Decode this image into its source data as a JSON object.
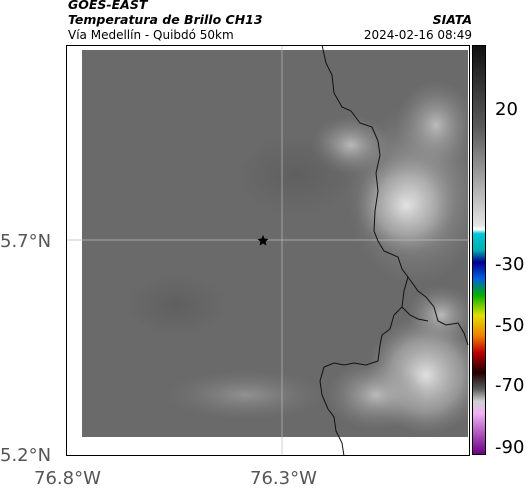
{
  "header": {
    "satellite": "GOES-EAST",
    "product": "Temperatura de Brillo CH13",
    "region": "Vía Medellín - Quibdó 50km",
    "agency": "SIATA",
    "datetime": "2024-02-16 08:49"
  },
  "axes": {
    "lat_labels": [
      "5.7°N",
      "5.2°N"
    ],
    "lon_labels": [
      "76.8°W",
      "76.3°W"
    ]
  },
  "colorbar": {
    "tick_labels": [
      "20",
      "-30",
      "-50",
      "-70",
      "-90"
    ],
    "colors": [
      "#1a1a1a",
      "#6e6e6e",
      "#d8d8d8",
      "#00c8c8",
      "#000090",
      "#00a000",
      "#e0e000",
      "#e06000",
      "#b00000",
      "#200000",
      "#f0b0f0",
      "#8000a0"
    ]
  },
  "map": {
    "background_color": "#6a6a6a",
    "marker": "star-icon"
  }
}
